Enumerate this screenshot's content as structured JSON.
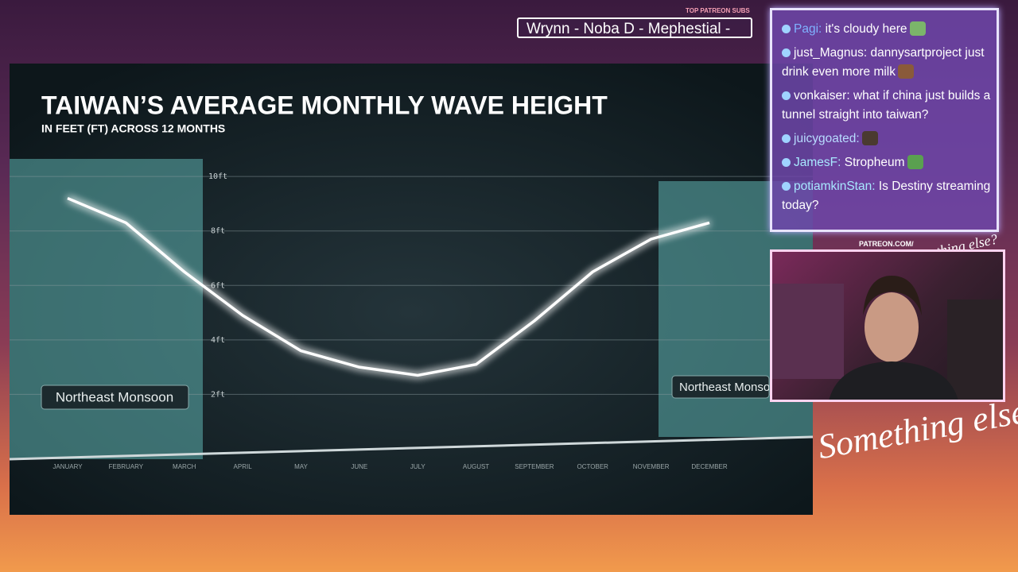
{
  "chart_data": {
    "type": "line",
    "title": "TAIWAN’S AVERAGE MONTHLY WAVE HEIGHT",
    "subtitle": "IN FEET (FT) ACROSS 12 MONTHS",
    "categories": [
      "JANUARY",
      "FEBRUARY",
      "MARCH",
      "APRIL",
      "MAY",
      "JUNE",
      "JULY",
      "AUGUST",
      "SEPTEMBER",
      "OCTOBER",
      "NOVEMBER",
      "DECEMBER"
    ],
    "values": [
      9.2,
      8.3,
      6.5,
      4.9,
      3.6,
      3.0,
      2.7,
      3.1,
      4.7,
      6.5,
      7.7,
      8.3
    ],
    "color": "#ffffff",
    "ylim": [
      0,
      10.5
    ],
    "yticks": [
      {
        "value": 2,
        "label": "2ft"
      },
      {
        "value": 4,
        "label": "4ft"
      },
      {
        "value": 6,
        "label": "6ft"
      },
      {
        "value": 8,
        "label": "8ft"
      },
      {
        "value": 10,
        "label": "10ft"
      }
    ],
    "grid": true,
    "annotations": [
      "Northeast Monsoon",
      "Northeast Monsoon"
    ]
  },
  "overlay": {
    "patreon_header": "TOP PATREON SUBS",
    "patreon_ticker": "Wrynn -  Noba D - Mephestial -",
    "patreon_url": "PATREON.COM/",
    "logo_small": "Anything else?",
    "logo_large": "Something else"
  },
  "chat": {
    "messages": [
      {
        "user": "Pagi:",
        "text": "it's cloudy here"
      },
      {
        "user": "just_Magnus:",
        "text": "dannysartproject just drink even more milk"
      },
      {
        "user": "vonkaiser:",
        "text": "what if china just builds a tunnel straight into taiwan?"
      },
      {
        "user": "juicygoated:"
      },
      {
        "user": "JamesF:",
        "text": "Stropheum"
      },
      {
        "user": "potiamkinStan:",
        "text": "Is Destiny streaming today?"
      }
    ]
  }
}
